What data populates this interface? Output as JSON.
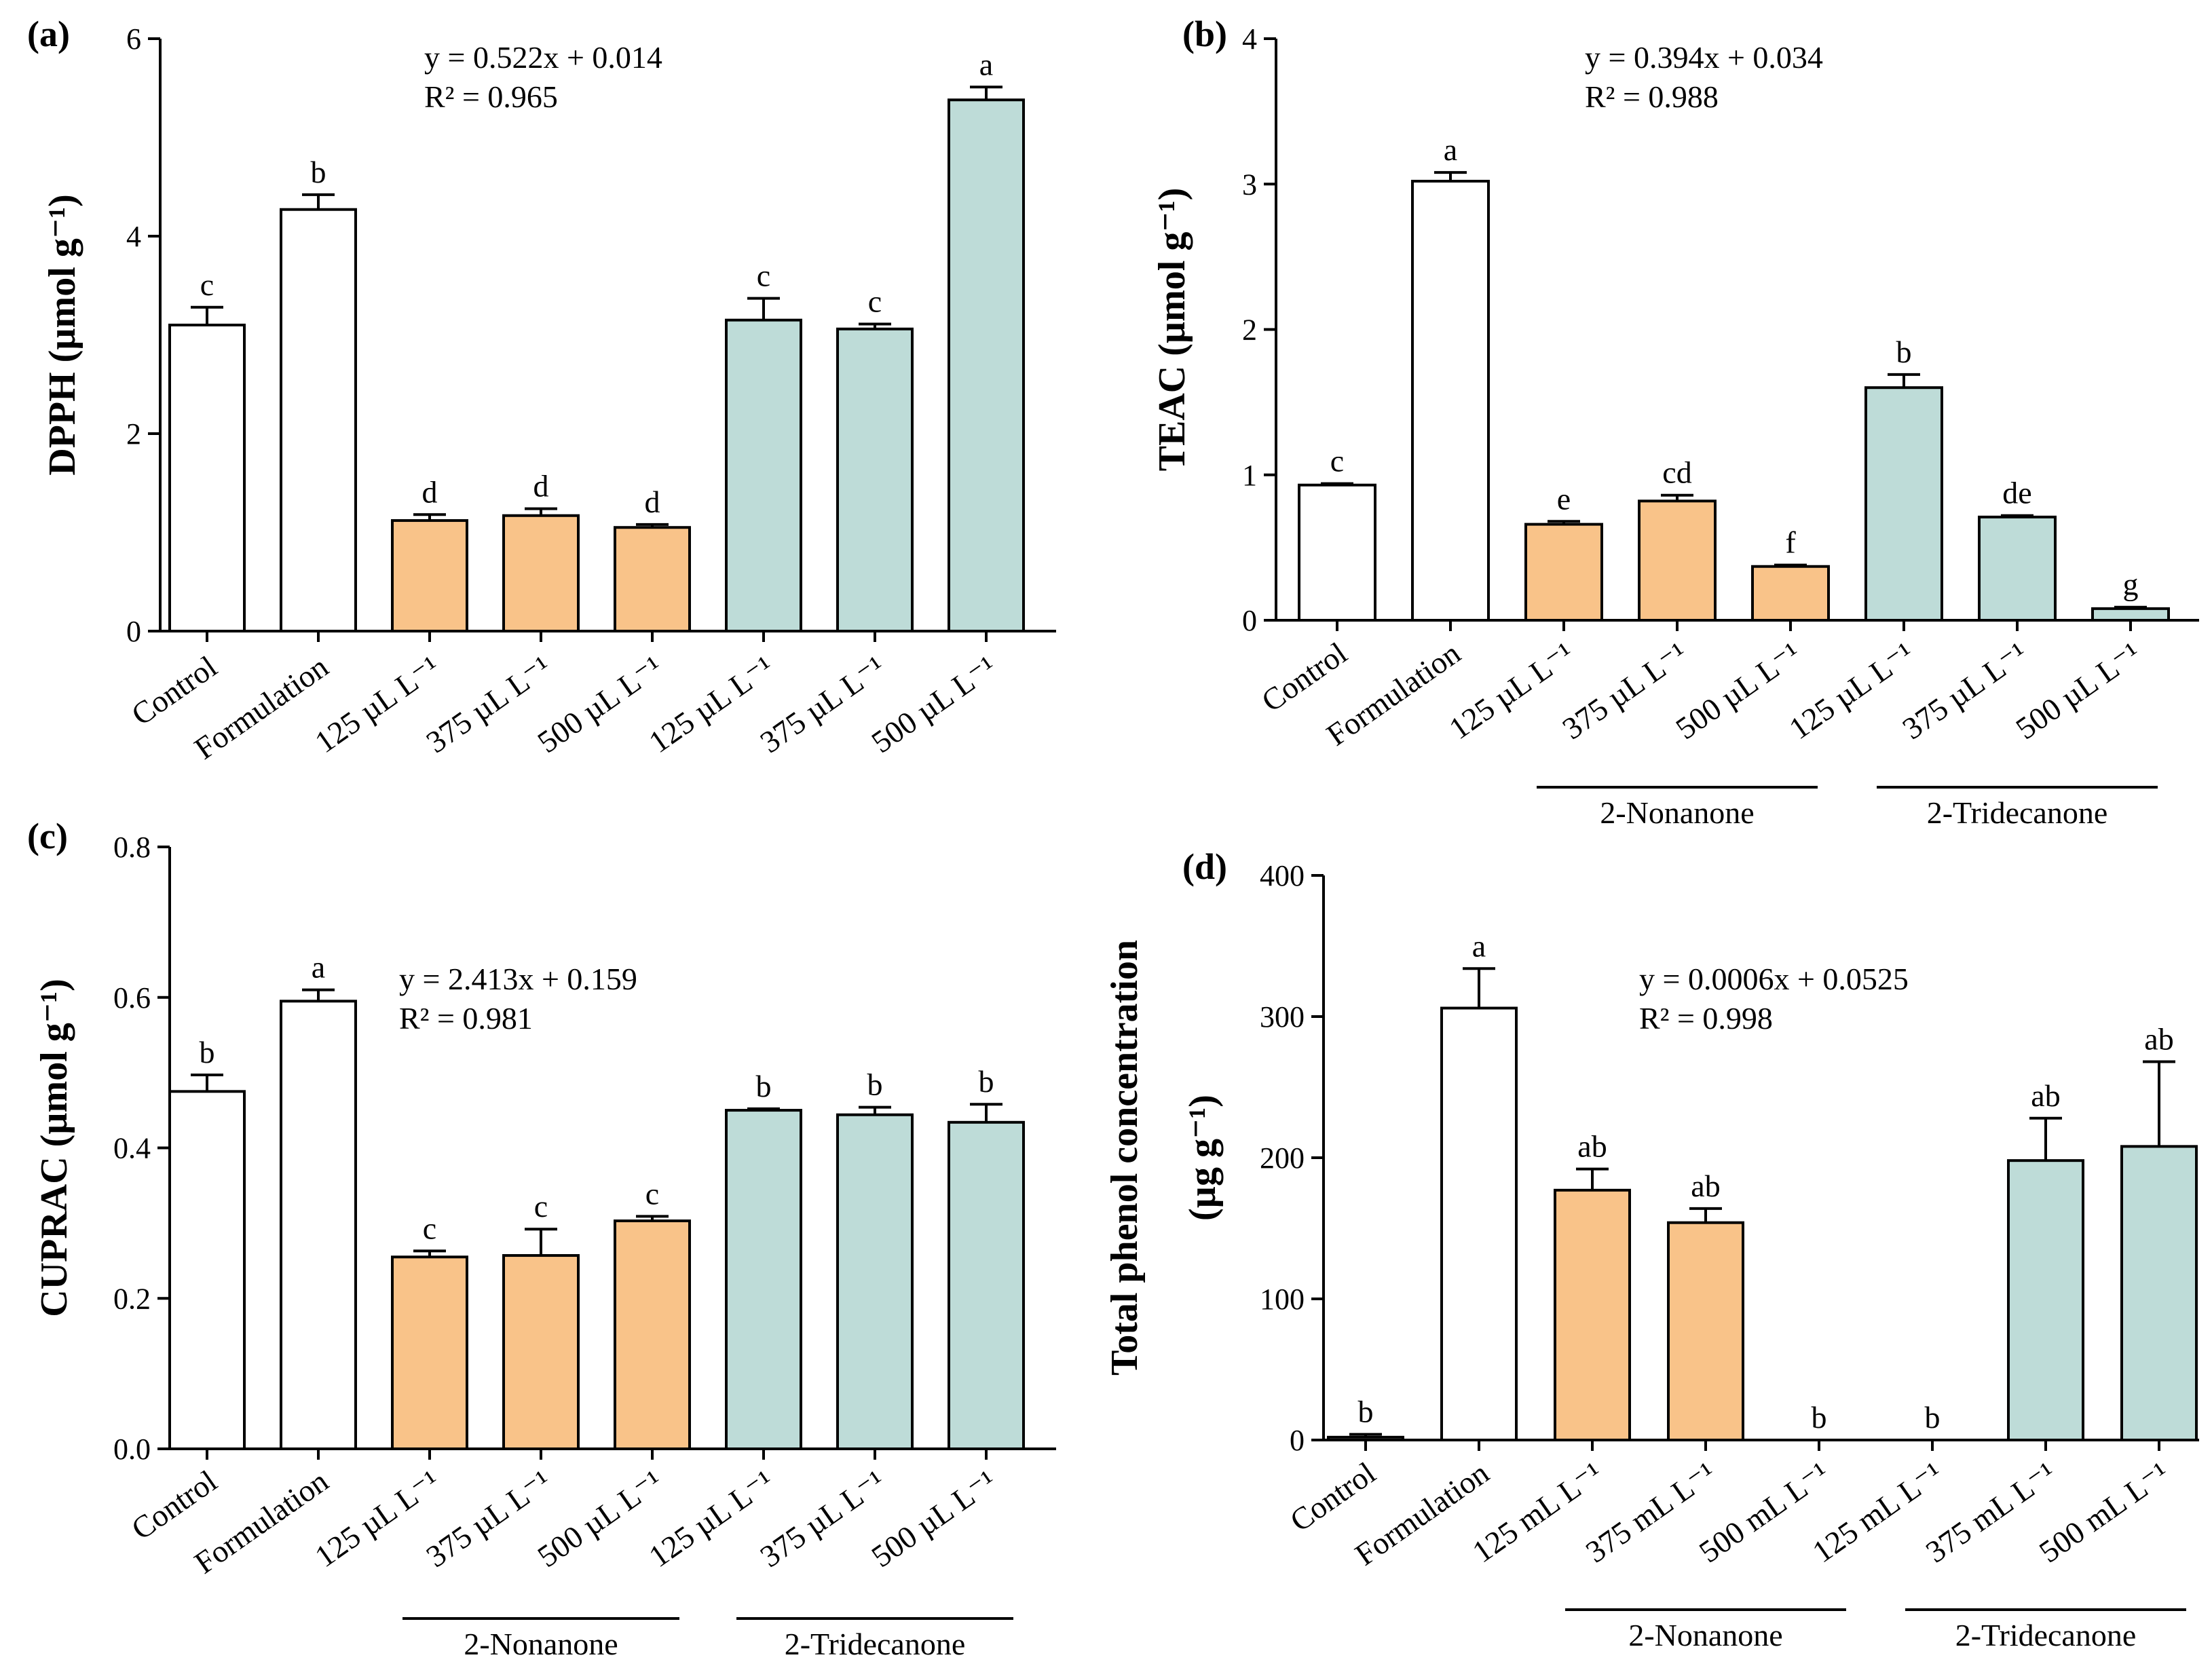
{
  "colors": {
    "control": "#ffffff",
    "nonanone": "#f9c389",
    "tridecanone": "#bedcd8",
    "stroke": "#000000"
  },
  "chart_data": [
    {
      "id": "a",
      "type": "bar",
      "panel_label": "(a)",
      "ylabel": "DPPH (µmol g⁻¹)",
      "ylim": [
        0,
        6
      ],
      "yticks": [
        0,
        2,
        4,
        6
      ],
      "ytick_labels": [
        "0",
        "2",
        "4",
        "6"
      ],
      "equation": "y = 0.522x + 0.014",
      "r2": "R² = 0.965",
      "categories": [
        "Control",
        "Formulation",
        "125 µL L⁻¹",
        "375 µL L⁻¹",
        "500 µL L⁻¹",
        "125 µL L⁻¹",
        "375 µL L⁻¹",
        "500 µL L⁻¹"
      ],
      "groups": [
        "control",
        "control",
        "nonanone",
        "nonanone",
        "nonanone",
        "tridecanone",
        "tridecanone",
        "tridecanone"
      ],
      "values": [
        3.1,
        4.27,
        1.12,
        1.17,
        1.05,
        3.15,
        3.06,
        5.38
      ],
      "errors": [
        0.18,
        0.15,
        0.06,
        0.07,
        0.03,
        0.22,
        0.05,
        0.13
      ],
      "letters": [
        "c",
        "b",
        "d",
        "d",
        "d",
        "c",
        "c",
        "a"
      ],
      "group_labels": []
    },
    {
      "id": "b",
      "type": "bar",
      "panel_label": "(b)",
      "ylabel": "TEAC (µmol g⁻¹)",
      "ylim": [
        0,
        4
      ],
      "yticks": [
        0,
        1,
        2,
        3,
        4
      ],
      "ytick_labels": [
        "0",
        "1",
        "2",
        "3",
        "4"
      ],
      "equation": "y = 0.394x + 0.034",
      "r2": "R² = 0.988",
      "categories": [
        "Control",
        "Formulation",
        "125 µL L⁻¹",
        "375 µL L⁻¹",
        "500 µL L⁻¹",
        "125 µL L⁻¹",
        "375 µL L⁻¹",
        "500 µL L⁻¹"
      ],
      "groups": [
        "control",
        "control",
        "nonanone",
        "nonanone",
        "nonanone",
        "tridecanone",
        "tridecanone",
        "tridecanone"
      ],
      "values": [
        0.93,
        3.02,
        0.66,
        0.82,
        0.37,
        1.6,
        0.71,
        0.08
      ],
      "errors": [
        0.01,
        0.06,
        0.02,
        0.04,
        0.01,
        0.09,
        0.01,
        0.01
      ],
      "letters": [
        "c",
        "a",
        "e",
        "cd",
        "f",
        "b",
        "de",
        "g"
      ],
      "group_labels": [
        {
          "text": "2-Nonanone",
          "from": 2,
          "to": 4
        },
        {
          "text": "2-Tridecanone",
          "from": 5,
          "to": 7
        }
      ]
    },
    {
      "id": "c",
      "type": "bar",
      "panel_label": "(c)",
      "ylabel": "CUPRAC (µmol g⁻¹)",
      "ylim": [
        0,
        0.8
      ],
      "yticks": [
        0,
        0.2,
        0.4,
        0.6,
        0.8
      ],
      "ytick_labels": [
        "0.0",
        "0.2",
        "0.4",
        "0.6",
        "0.8"
      ],
      "equation": "y = 2.413x + 0.159",
      "r2": "R² = 0.981",
      "categories": [
        "Control",
        "Formulation",
        "125 µL L⁻¹",
        "375 µL L⁻¹",
        "500 µL L⁻¹",
        "125 µL L⁻¹",
        "375 µL L⁻¹",
        "500 µL L⁻¹"
      ],
      "groups": [
        "control",
        "control",
        "nonanone",
        "nonanone",
        "nonanone",
        "tridecanone",
        "tridecanone",
        "tridecanone"
      ],
      "values": [
        0.475,
        0.595,
        0.255,
        0.257,
        0.303,
        0.45,
        0.444,
        0.434
      ],
      "errors": [
        0.022,
        0.015,
        0.008,
        0.035,
        0.006,
        0.002,
        0.01,
        0.024
      ],
      "letters": [
        "b",
        "a",
        "c",
        "c",
        "c",
        "b",
        "b",
        "b"
      ],
      "group_labels": [
        {
          "text": "2-Nonanone",
          "from": 2,
          "to": 4
        },
        {
          "text": "2-Tridecanone",
          "from": 5,
          "to": 7
        }
      ]
    },
    {
      "id": "d",
      "type": "bar",
      "panel_label": "(d)",
      "ylabel": "Total phenol concentration",
      "ylabel2": "(µg g⁻¹)",
      "ylim": [
        0,
        400
      ],
      "yticks": [
        0,
        100,
        200,
        300,
        400
      ],
      "ytick_labels": [
        "0",
        "100",
        "200",
        "300",
        "400"
      ],
      "equation": "y = 0.0006x + 0.0525",
      "r2": "R² = 0.998",
      "categories": [
        "Control",
        "Formulation",
        "125 mL L⁻¹",
        "375 mL L⁻¹",
        "500 mL L⁻¹",
        "125 mL L⁻¹",
        "375 mL L⁻¹",
        "500 mL L⁻¹"
      ],
      "groups": [
        "control",
        "control",
        "nonanone",
        "nonanone",
        "nonanone",
        "tridecanone",
        "tridecanone",
        "tridecanone"
      ],
      "values": [
        2,
        306,
        177,
        154,
        0,
        0,
        198,
        208
      ],
      "errors": [
        2,
        28,
        15,
        10,
        0,
        0,
        30,
        60
      ],
      "letters": [
        "b",
        "a",
        "ab",
        "ab",
        "b",
        "b",
        "ab",
        "ab"
      ],
      "group_labels": [
        {
          "text": "2-Nonanone",
          "from": 2,
          "to": 4
        },
        {
          "text": "2-Tridecanone",
          "from": 5,
          "to": 7
        }
      ]
    }
  ]
}
